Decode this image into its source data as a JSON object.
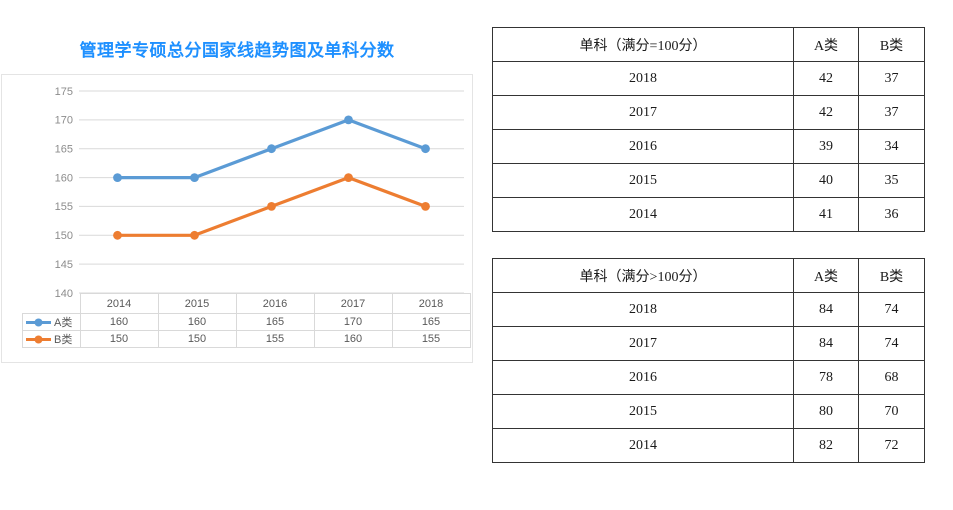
{
  "title": {
    "text": "管理学专硕总分国家线趋势图及单科分数",
    "color": "#1e90ff"
  },
  "chart_data": {
    "type": "line",
    "title": "管理学专硕总分国家线趋势图及单科分数",
    "categories": [
      "2014",
      "2015",
      "2016",
      "2017",
      "2018"
    ],
    "series": [
      {
        "name": "A类",
        "values": [
          160,
          160,
          165,
          170,
          165
        ],
        "color": "#5B9BD5"
      },
      {
        "name": "B类",
        "values": [
          150,
          150,
          155,
          160,
          155
        ],
        "color": "#ED7D31"
      }
    ],
    "ylim": [
      140,
      175
    ],
    "yticks": [
      175,
      170,
      165,
      160,
      155,
      150,
      145,
      140
    ],
    "grid": true,
    "grid_color": "#d9d9d9",
    "axis_label_color": "#8c8c8c",
    "table_text_color": "#595959",
    "legend_position": "data-table-left",
    "xlabel": "",
    "ylabel": ""
  },
  "score_tables": [
    {
      "header": [
        "单科（满分=100分）",
        "A类",
        "B类"
      ],
      "rows": [
        [
          "2018",
          "42",
          "37"
        ],
        [
          "2017",
          "42",
          "37"
        ],
        [
          "2016",
          "39",
          "34"
        ],
        [
          "2015",
          "40",
          "35"
        ],
        [
          "2014",
          "41",
          "36"
        ]
      ]
    },
    {
      "header": [
        "单科（满分>100分）",
        "A类",
        "B类"
      ],
      "rows": [
        [
          "2018",
          "84",
          "74"
        ],
        [
          "2017",
          "84",
          "74"
        ],
        [
          "2016",
          "78",
          "68"
        ],
        [
          "2015",
          "80",
          "70"
        ],
        [
          "2014",
          "82",
          "72"
        ]
      ]
    }
  ]
}
